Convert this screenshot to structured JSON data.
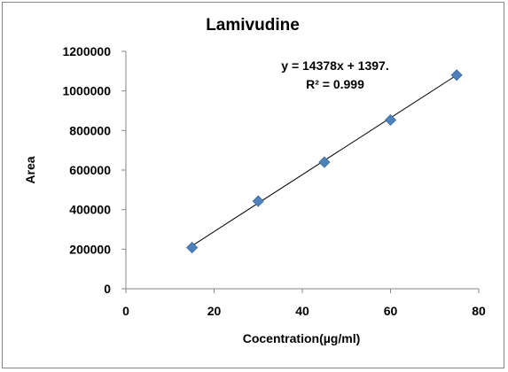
{
  "chart_data": {
    "type": "scatter",
    "title": "Lamivudine",
    "xlabel": "Cocentration(µg/ml)",
    "ylabel": "Area",
    "xlim": [
      0,
      80
    ],
    "ylim": [
      0,
      1200000
    ],
    "x_ticks": [
      "0",
      "20",
      "40",
      "60",
      "80"
    ],
    "y_ticks": [
      "0",
      "200000",
      "400000",
      "600000",
      "800000",
      "1000000",
      "1200000"
    ],
    "grid": false,
    "legend": "none",
    "marker_color": "#4F81BD",
    "trendline_color": "#000000",
    "points": [
      {
        "x": 15,
        "y": 208000
      },
      {
        "x": 30,
        "y": 443000
      },
      {
        "x": 45,
        "y": 640000
      },
      {
        "x": 60,
        "y": 853000
      },
      {
        "x": 75,
        "y": 1080000
      }
    ],
    "trendline": {
      "type": "linear",
      "slope": 14378,
      "intercept": 1397
    },
    "annotations": {
      "equation": "y = 14378x  + 1397.",
      "r_squared": "R² = 0.999"
    }
  }
}
